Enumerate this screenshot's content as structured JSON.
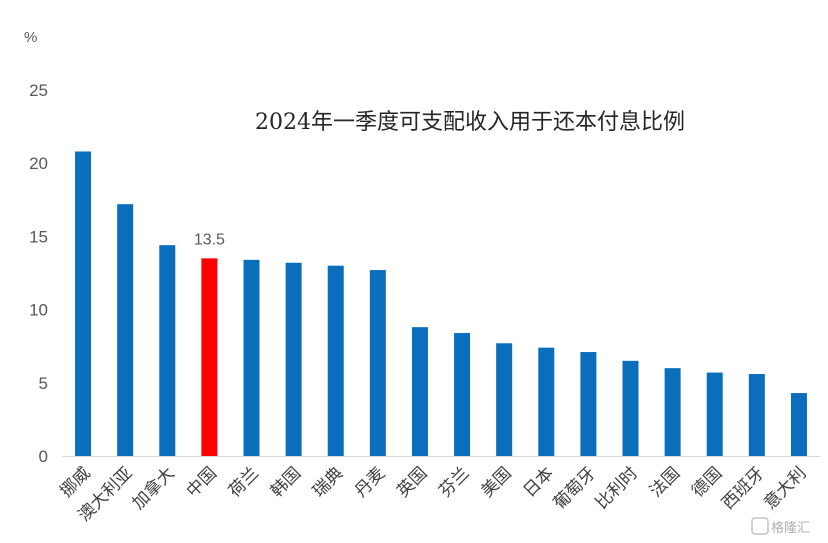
{
  "chart_data": {
    "type": "bar",
    "title": "2024年一季度可支配收入用于还本付息比例",
    "ylabel": "%",
    "ylim": [
      0,
      25
    ],
    "yticks": [
      "0",
      "5",
      "10",
      "15",
      "20",
      "25"
    ],
    "categories": [
      "挪威",
      "澳大利亚",
      "加拿大",
      "中国",
      "荷兰",
      "韩国",
      "瑞典",
      "丹麦",
      "英国",
      "芬兰",
      "美国",
      "日本",
      "葡萄牙",
      "比利时",
      "法国",
      "德国",
      "西班牙",
      "意大利"
    ],
    "values": [
      20.8,
      17.2,
      14.4,
      13.5,
      13.4,
      13.2,
      13.0,
      12.7,
      8.8,
      8.4,
      7.7,
      7.4,
      7.1,
      6.5,
      6.0,
      5.7,
      5.6,
      4.3
    ],
    "highlight_index": 3,
    "data_labels": [
      {
        "index": 3,
        "text": "13.5"
      }
    ],
    "grid": false,
    "colors": {
      "bar": "#0a6ebd",
      "highlight": "#ff0000",
      "axis": "#d9d9d9"
    }
  },
  "watermark": "格隆汇"
}
